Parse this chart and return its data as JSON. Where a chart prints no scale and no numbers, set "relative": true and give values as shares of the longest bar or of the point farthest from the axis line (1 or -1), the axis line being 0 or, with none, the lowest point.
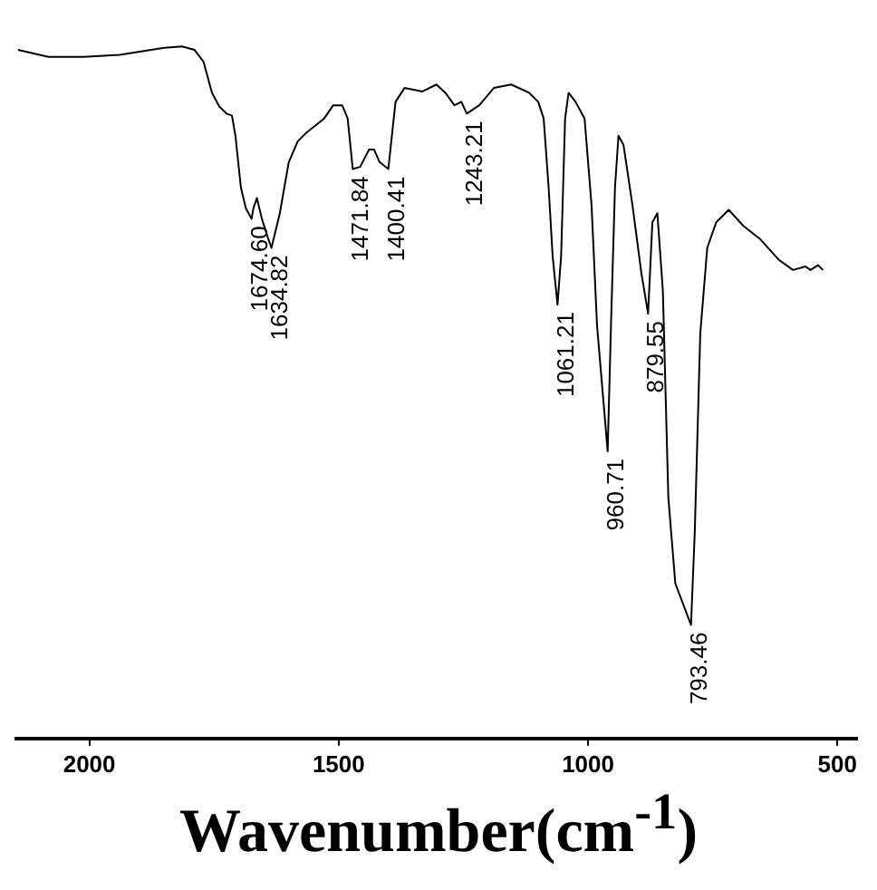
{
  "chart_data": {
    "type": "line",
    "xlabel": "Wavenumber(cm$^{-1}$)",
    "relative": true,
    "xlim": [
      2150,
      460
    ],
    "xticks": [
      2000,
      1500,
      1000,
      500
    ],
    "grid": false,
    "legend": false,
    "series": [
      {
        "color": "#000000",
        "x": [
          2143,
          2082,
          2011,
          1939,
          1850,
          1814,
          1789,
          1771,
          1754,
          1739,
          1725,
          1714,
          1707,
          1696,
          1686,
          1674.6,
          1671,
          1664,
          1654,
          1643,
          1634.8,
          1618,
          1600,
          1582,
          1564,
          1546,
          1529,
          1511,
          1493,
          1482,
          1475,
          1471.8,
          1457,
          1439,
          1429,
          1418,
          1400.4,
          1386,
          1368,
          1332,
          1304,
          1286,
          1268,
          1254,
          1243.2,
          1218,
          1189,
          1154,
          1118,
          1100,
          1089,
          1079,
          1071,
          1061.2,
          1054,
          1046,
          1039,
          1025,
          1007,
          993,
          982,
          960.7,
          954,
          946,
          939,
          929,
          911,
          893,
          879.6,
          871,
          861,
          850,
          839,
          825,
          793.5,
          786,
          775,
          761,
          743,
          718,
          689,
          654,
          618,
          589,
          564,
          554,
          539,
          529
        ],
        "values": [
          0.995,
          0.985,
          0.985,
          0.988,
          0.998,
          1.0,
          0.995,
          0.978,
          0.933,
          0.913,
          0.903,
          0.9,
          0.871,
          0.796,
          0.766,
          0.751,
          0.766,
          0.781,
          0.751,
          0.726,
          0.709,
          0.759,
          0.833,
          0.863,
          0.876,
          0.886,
          0.896,
          0.915,
          0.915,
          0.896,
          0.846,
          0.823,
          0.826,
          0.851,
          0.851,
          0.833,
          0.823,
          0.92,
          0.94,
          0.935,
          0.945,
          0.933,
          0.915,
          0.92,
          0.903,
          0.915,
          0.94,
          0.945,
          0.933,
          0.92,
          0.896,
          0.796,
          0.697,
          0.627,
          0.697,
          0.896,
          0.933,
          0.92,
          0.896,
          0.771,
          0.597,
          0.415,
          0.597,
          0.796,
          0.871,
          0.858,
          0.771,
          0.672,
          0.614,
          0.746,
          0.759,
          0.647,
          0.348,
          0.224,
          0.164,
          0.299,
          0.585,
          0.709,
          0.746,
          0.764,
          0.741,
          0.721,
          0.692,
          0.677,
          0.682,
          0.677,
          0.684,
          0.677
        ]
      }
    ],
    "annotations": [
      {
        "text": "1674.60",
        "x": 1674.6,
        "y": 0.751
      },
      {
        "text": "1634.82",
        "x": 1634.8,
        "y": 0.709
      },
      {
        "text": "1471.84",
        "x": 1471.8,
        "y": 0.823
      },
      {
        "text": "1400.41",
        "x": 1400.4,
        "y": 0.823
      },
      {
        "text": "1243.21",
        "x": 1243.2,
        "y": 0.903
      },
      {
        "text": "1061.21",
        "x": 1061.2,
        "y": 0.627
      },
      {
        "text": "960.71",
        "x": 960.7,
        "y": 0.415
      },
      {
        "text": "879.55",
        "x": 879.6,
        "y": 0.614
      },
      {
        "text": "793.46",
        "x": 793.5,
        "y": 0.164
      }
    ]
  }
}
